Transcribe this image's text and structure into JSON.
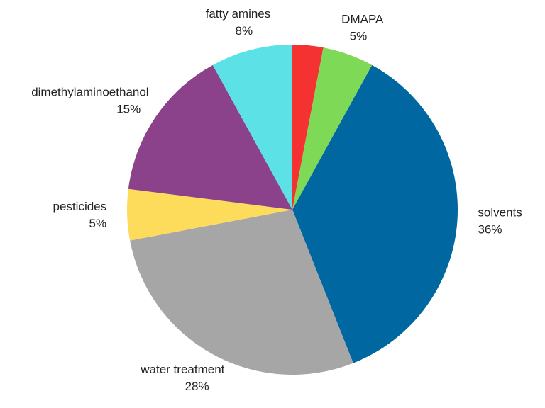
{
  "chart_data": {
    "type": "pie",
    "categories": [
      null,
      "DMAPA",
      "solvents",
      "water treatment",
      "pesticides",
      "dimethylaminoethanol",
      "fatty amines"
    ],
    "values": [
      3,
      5,
      36,
      28,
      5,
      15,
      8
    ],
    "value_labels": [
      null,
      "5%",
      "36%",
      "28%",
      "5%",
      "15%",
      "8%"
    ],
    "colors": [
      "#f53232",
      "#7ed957",
      "#0067a0",
      "#a6a6a6",
      "#fddc5c",
      "#8b428a",
      "#5ce1e6"
    ]
  }
}
